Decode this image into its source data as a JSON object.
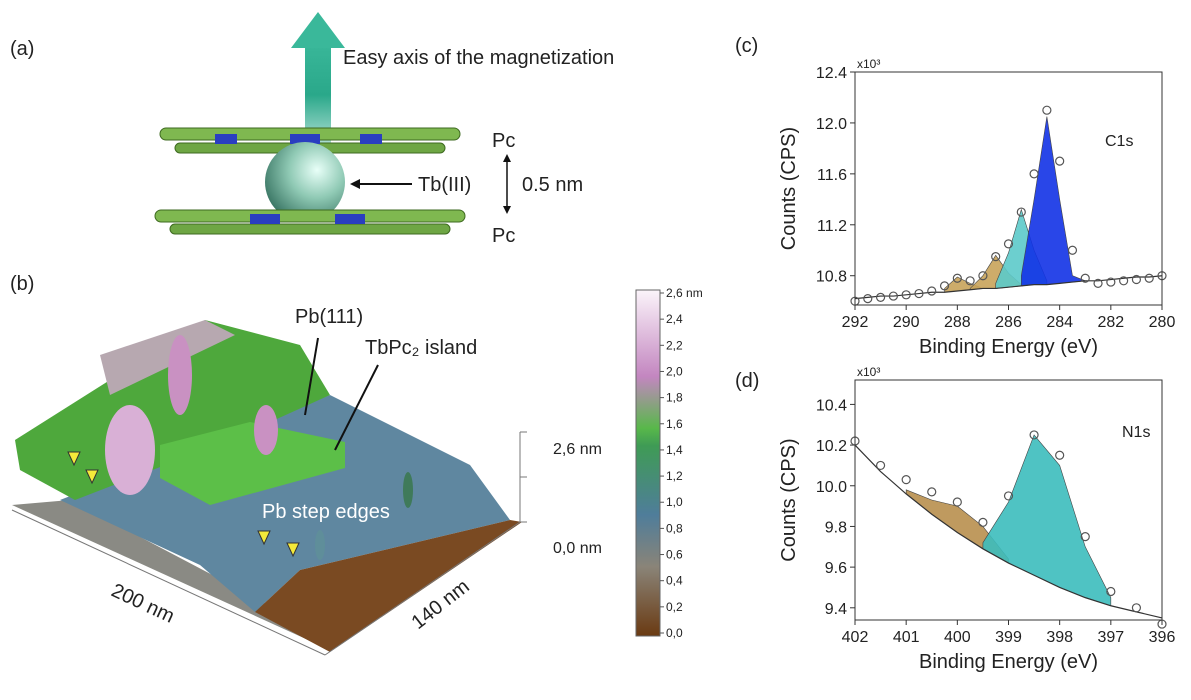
{
  "panel_a": {
    "label": "(a)",
    "arrow_label": "Easy axis of the magnetization",
    "top_ligand": "Pc",
    "bottom_ligand": "Pc",
    "ion": "Tb(III)",
    "distance": "0.5 nm"
  },
  "panel_b": {
    "label": "(b)",
    "terrace": "Pb(111)",
    "island": "TbPc₂ island",
    "step_edges": "Pb step edges",
    "x_size": "200 nm",
    "y_size": "140 nm",
    "z_top": "2,6 nm",
    "z_bottom": "0,0 nm",
    "colorbar": {
      "ticks": [
        "2,6 nm",
        "2,4",
        "2,2",
        "2,0",
        "1,8",
        "1,6",
        "1,4",
        "1,2",
        "1,0",
        "0,8",
        "0,6",
        "0,4",
        "0,2",
        "0,0"
      ]
    }
  },
  "chart_data": [
    {
      "type": "line",
      "panel_label": "(c)",
      "peak_label": "C1s",
      "multiplier": "x10³",
      "x_label": "Binding Energy (eV)",
      "y_label": "Counts (CPS)",
      "x": [
        292,
        291.5,
        291,
        290.5,
        290,
        289.5,
        289,
        288.5,
        288,
        287.5,
        287,
        286.5,
        286,
        285.5,
        285,
        284.5,
        284,
        283.5,
        283,
        282.5,
        282,
        281.5,
        281,
        280.5,
        280
      ],
      "xlim": [
        292,
        280
      ],
      "xticks": [
        292,
        290,
        288,
        286,
        284,
        282,
        280
      ],
      "ylim": [
        10.57,
        12.4
      ],
      "yticks": [
        10.8,
        11.2,
        11.6,
        {
          "value": 12,
          "label": "12.0"
        },
        12.4
      ],
      "series": [
        {
          "style": "area",
          "color": "#c8a35a",
          "values": [
            null,
            null,
            null,
            null,
            null,
            null,
            null,
            10.7,
            10.79,
            10.74,
            10.7,
            null,
            null,
            null,
            null,
            null,
            null,
            null,
            null,
            null,
            null,
            null,
            null,
            null,
            null
          ]
        },
        {
          "style": "area",
          "color": "#c8a35a",
          "values": [
            null,
            null,
            null,
            null,
            null,
            null,
            null,
            null,
            null,
            10.7,
            10.8,
            10.96,
            10.82,
            10.73,
            null,
            null,
            null,
            null,
            null,
            null,
            null,
            null,
            null,
            null,
            null
          ]
        },
        {
          "style": "area",
          "color": "#5ccaca",
          "values": [
            null,
            null,
            null,
            null,
            null,
            null,
            null,
            null,
            null,
            null,
            null,
            10.74,
            10.98,
            11.32,
            11.0,
            10.76,
            null,
            null,
            null,
            null,
            null,
            null,
            null,
            null,
            null
          ]
        },
        {
          "style": "area",
          "color": "#1232e6",
          "values": [
            null,
            null,
            null,
            null,
            null,
            null,
            null,
            null,
            null,
            null,
            null,
            null,
            null,
            10.8,
            11.4,
            12.05,
            11.4,
            10.8,
            10.76,
            null,
            null,
            null,
            null,
            null,
            null
          ]
        },
        {
          "style": "line",
          "color": "#333333",
          "values": [
            10.62,
            10.63,
            10.64,
            10.64,
            10.65,
            10.66,
            10.67,
            10.67,
            10.68,
            10.69,
            10.7,
            10.7,
            10.71,
            10.72,
            10.73,
            10.73,
            10.74,
            10.75,
            10.76,
            10.76,
            10.77,
            10.78,
            10.79,
            10.79,
            10.8
          ]
        },
        {
          "style": "markers",
          "color": "#555555",
          "values": [
            10.6,
            10.62,
            10.63,
            10.64,
            10.65,
            10.66,
            10.68,
            10.72,
            10.78,
            10.76,
            10.8,
            10.95,
            11.05,
            11.3,
            11.6,
            12.1,
            11.7,
            11.0,
            10.78,
            10.74,
            10.75,
            10.76,
            10.77,
            10.78,
            10.8
          ]
        }
      ]
    },
    {
      "type": "line",
      "panel_label": "(d)",
      "peak_label": "N1s",
      "multiplier": "x10³",
      "x_label": "Binding Energy (eV)",
      "y_label": "Counts (CPS)",
      "x": [
        402,
        401.5,
        401,
        400.5,
        400,
        399.5,
        399,
        398.5,
        398,
        397.5,
        397,
        396.5,
        396
      ],
      "xlim": [
        402,
        396
      ],
      "xticks": [
        402,
        401,
        400,
        399,
        398,
        397,
        396
      ],
      "ylim": [
        9.34,
        10.52
      ],
      "yticks": [
        9.4,
        9.6,
        9.8,
        {
          "value": 10,
          "label": "10.0"
        },
        10.2,
        10.4
      ],
      "series": [
        {
          "style": "area",
          "color": "#b88f4e",
          "values": [
            null,
            null,
            9.98,
            9.93,
            9.9,
            9.8,
            9.64,
            null,
            null,
            null,
            null,
            null,
            null
          ]
        },
        {
          "style": "area",
          "color": "#3cbcbc",
          "values": [
            null,
            null,
            null,
            null,
            null,
            9.72,
            9.92,
            10.25,
            10.1,
            9.7,
            9.45,
            null,
            null
          ]
        },
        {
          "style": "line",
          "color": "#333333",
          "values": [
            10.2,
            10.07,
            9.96,
            9.86,
            9.77,
            9.69,
            9.62,
            9.56,
            9.5,
            9.45,
            9.41,
            9.38,
            9.35
          ]
        },
        {
          "style": "markers",
          "color": "#555555",
          "values": [
            10.22,
            10.1,
            10.03,
            9.97,
            9.92,
            9.82,
            9.95,
            10.25,
            10.15,
            9.75,
            9.48,
            9.4,
            9.32
          ]
        }
      ]
    }
  ]
}
